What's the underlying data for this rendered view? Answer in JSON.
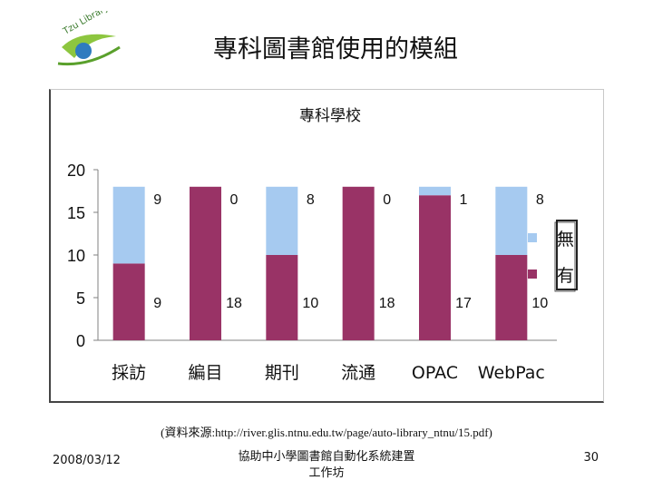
{
  "slide": {
    "title": "專科圖書館使用的模組",
    "logo_text": "Tzu Library",
    "source": "(資料來源:http://river.glis.ntnu.edu.tw/page/auto-library_ntnu/15.pdf)",
    "footer_date": "2008/03/12",
    "footer_center_line1": "協助中小學圖書館自動化系統建置",
    "footer_center_line2": "工作坊",
    "page_number": "30"
  },
  "colors": {
    "series_you": "#993366",
    "series_wu": "#a6caf0",
    "axis": "#808080"
  },
  "chart_data": {
    "type": "bar",
    "stacked": true,
    "title": "專科學校",
    "categories": [
      "採訪",
      "編目",
      "期刊",
      "流通",
      "OPAC",
      "WebPac"
    ],
    "series": [
      {
        "name": "有",
        "values": [
          9,
          18,
          10,
          18,
          17,
          10
        ]
      },
      {
        "name": "無",
        "values": [
          9,
          0,
          8,
          0,
          1,
          8
        ]
      }
    ],
    "yticks": [
      "0",
      "5",
      "10",
      "15",
      "20"
    ],
    "ylim": [
      0,
      20
    ],
    "xlabel": "",
    "ylabel": "",
    "legend": "right"
  }
}
